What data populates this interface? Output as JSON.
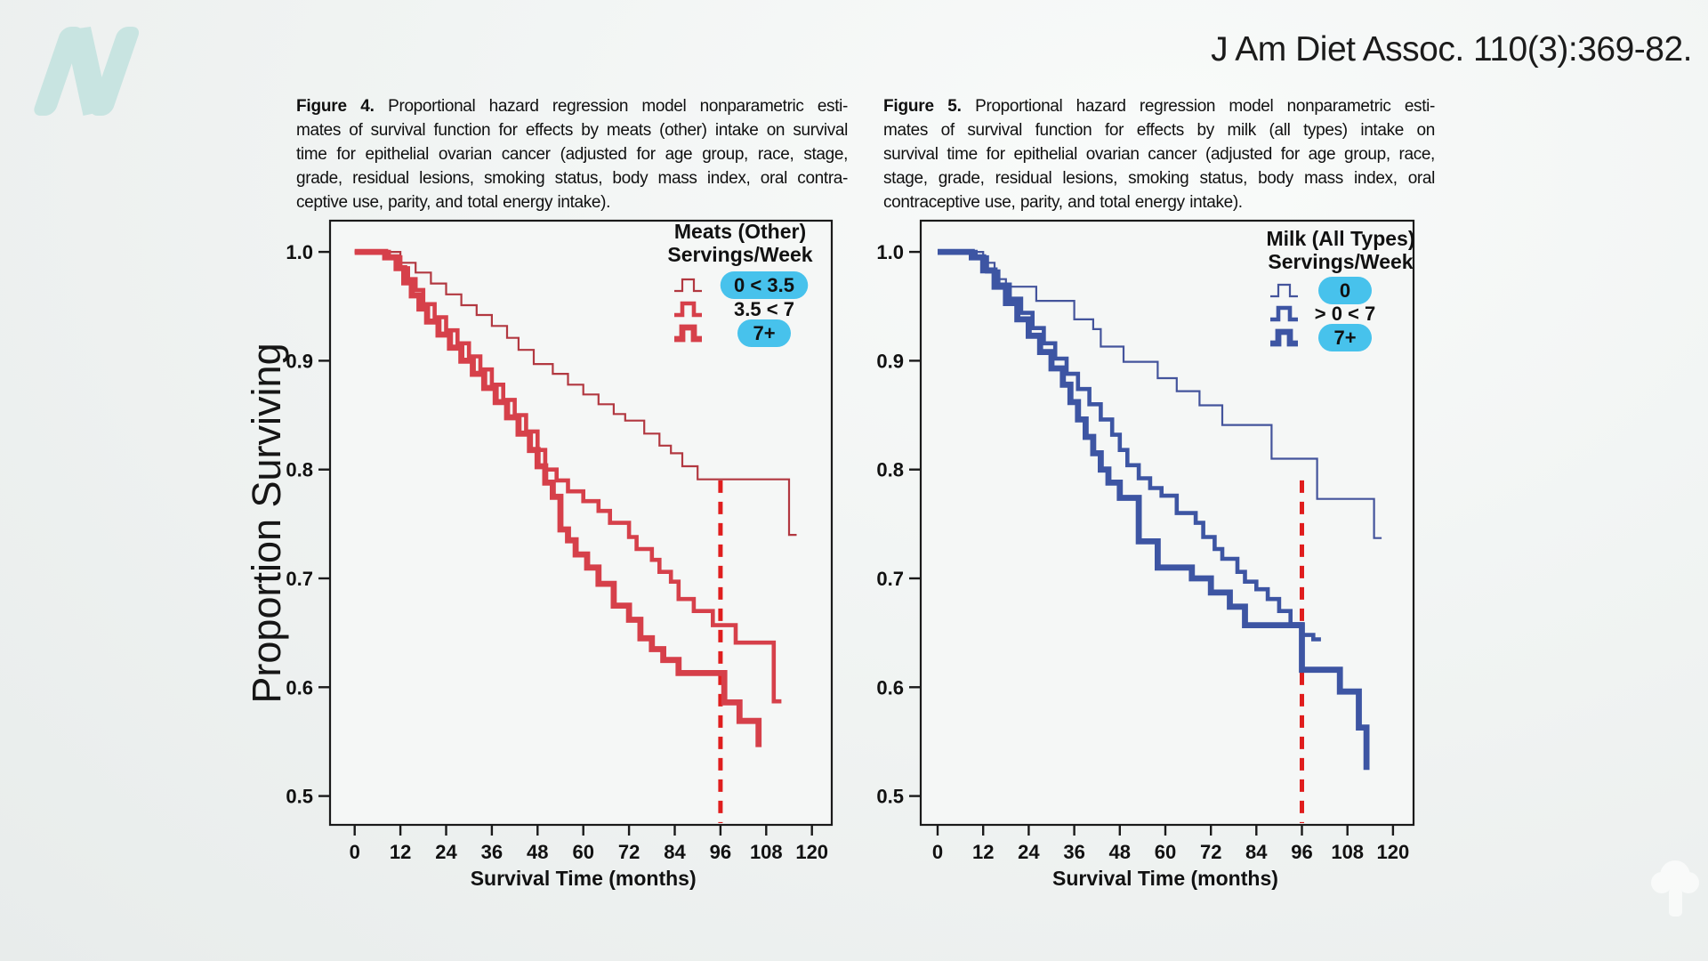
{
  "page": {
    "citation": "J Am Diet Assoc. 110(3):369-82.",
    "logo_letter": "N"
  },
  "shared": {
    "y_label": "Proportion Surviving",
    "x_label": "Survival Time (months)",
    "reference_line_month": 96
  },
  "colors": {
    "red_thin": "#b23840",
    "red": "#d6404a",
    "blue_thin": "#44549c",
    "blue": "#3d55a3",
    "reference_dash": "#e01d1d",
    "legend_pill": "#47c2ec",
    "axis": "#1a1a1a",
    "plot_fill": "#f5f7f6",
    "logo": "#c8e4e1"
  },
  "figures": [
    {
      "id": "fig4",
      "caption": {
        "bold": "Figure 4.",
        "lines": [
          "Proportional hazard regression model nonparametric esti-",
          "mates of survival function for effects by meats (other) intake on survival",
          "time for epithelial ovarian cancer (adjusted for age group, race, stage,",
          "grade, residual lesions, smoking status, body mass index, oral contra-",
          "ceptive use, parity, and total energy intake)."
        ]
      },
      "legend": {
        "title_lines": [
          "Meats (Other)",
          "Servings/Week"
        ],
        "entries": [
          {
            "label": "0 < 3.5",
            "pill": true,
            "weight": "thin"
          },
          {
            "label": "3.5 < 7",
            "pill": false,
            "weight": "medium"
          },
          {
            "label": "7+",
            "pill": true,
            "weight": "thick"
          }
        ]
      }
    },
    {
      "id": "fig5",
      "caption": {
        "bold": "Figure 5.",
        "lines": [
          "Proportional hazard regression model nonparametric esti-",
          "mates of survival function for effects by milk (all types) intake on",
          "survival time for epithelial ovarian cancer (adjusted for age group, race,",
          "stage, grade, residual lesions, smoking status, body mass index, oral",
          "contraceptive use, parity, and total energy intake)."
        ]
      },
      "legend": {
        "title_lines": [
          "Milk (All Types)",
          "Servings/Week"
        ],
        "entries": [
          {
            "label": "0",
            "pill": true,
            "weight": "thin"
          },
          {
            "label": "> 0 < 7",
            "pill": false,
            "weight": "medium"
          },
          {
            "label": "7+",
            "pill": true,
            "weight": "thick"
          }
        ]
      }
    }
  ],
  "chart_data": [
    {
      "type": "line",
      "subtype": "step-survival",
      "title": "Meats (Other) Servings/Week",
      "xlabel": "Survival Time (months)",
      "ylabel": "Proportion Surviving",
      "x_ticks": [
        0,
        12,
        24,
        36,
        48,
        60,
        72,
        84,
        96,
        108,
        120
      ],
      "y_ticks": [
        1.0,
        0.9,
        0.8,
        0.7,
        0.6,
        0.5
      ],
      "xlim": [
        -6,
        125
      ],
      "ylim": [
        0.473,
        1.029
      ],
      "grid": false,
      "legend_position": "top-right",
      "reference_line": {
        "x": 96,
        "style": "dashed",
        "color": "#e01d1d",
        "y_top": 0.79,
        "y_bottom": 0.475
      },
      "series": [
        {
          "name": "0 < 3.5",
          "weight": "thin",
          "color": "#b23840",
          "end_month": 116,
          "steps": [
            [
              0,
              1.0
            ],
            [
              12,
              0.99
            ],
            [
              16,
              0.981
            ],
            [
              20,
              0.971
            ],
            [
              24,
              0.961
            ],
            [
              28,
              0.951
            ],
            [
              32,
              0.942
            ],
            [
              36,
              0.932
            ],
            [
              40,
              0.921
            ],
            [
              43,
              0.91
            ],
            [
              47,
              0.897
            ],
            [
              52,
              0.888
            ],
            [
              56,
              0.878
            ],
            [
              60,
              0.869
            ],
            [
              64,
              0.86
            ],
            [
              68,
              0.851
            ],
            [
              71,
              0.845
            ],
            [
              76,
              0.833
            ],
            [
              80,
              0.822
            ],
            [
              83,
              0.815
            ],
            [
              86,
              0.803
            ],
            [
              90,
              0.791
            ],
            [
              114,
              0.74
            ]
          ]
        },
        {
          "name": "3.5 < 7",
          "weight": "medium",
          "color": "#d6404a",
          "end_month": 112,
          "steps": [
            [
              0,
              1.0
            ],
            [
              9,
              0.995
            ],
            [
              12,
              0.985
            ],
            [
              14,
              0.975
            ],
            [
              16,
              0.965
            ],
            [
              18,
              0.952
            ],
            [
              21,
              0.94
            ],
            [
              24,
              0.928
            ],
            [
              27,
              0.916
            ],
            [
              30,
              0.904
            ],
            [
              33,
              0.892
            ],
            [
              36,
              0.878
            ],
            [
              39,
              0.864
            ],
            [
              42,
              0.85
            ],
            [
              45,
              0.835
            ],
            [
              48,
              0.818
            ],
            [
              50,
              0.8
            ],
            [
              53,
              0.79
            ],
            [
              56,
              0.78
            ],
            [
              60,
              0.771
            ],
            [
              64,
              0.762
            ],
            [
              67,
              0.751
            ],
            [
              72,
              0.738
            ],
            [
              74,
              0.727
            ],
            [
              78,
              0.717
            ],
            [
              80,
              0.706
            ],
            [
              83,
              0.697
            ],
            [
              85,
              0.681
            ],
            [
              89,
              0.67
            ],
            [
              94,
              0.657
            ],
            [
              100,
              0.641
            ],
            [
              110,
              0.587
            ]
          ]
        },
        {
          "name": "7+",
          "weight": "thick",
          "color": "#d6404a",
          "end_month": 106,
          "steps": [
            [
              0,
              1.0
            ],
            [
              8,
              0.995
            ],
            [
              11,
              0.985
            ],
            [
              13,
              0.972
            ],
            [
              15,
              0.96
            ],
            [
              17,
              0.948
            ],
            [
              19,
              0.936
            ],
            [
              22,
              0.924
            ],
            [
              25,
              0.912
            ],
            [
              28,
              0.9
            ],
            [
              31,
              0.888
            ],
            [
              34,
              0.875
            ],
            [
              37,
              0.862
            ],
            [
              40,
              0.848
            ],
            [
              43,
              0.833
            ],
            [
              46,
              0.818
            ],
            [
              48,
              0.803
            ],
            [
              50,
              0.788
            ],
            [
              52,
              0.775
            ],
            [
              54,
              0.745
            ],
            [
              56,
              0.735
            ],
            [
              58,
              0.722
            ],
            [
              61,
              0.71
            ],
            [
              64,
              0.695
            ],
            [
              68,
              0.675
            ],
            [
              72,
              0.662
            ],
            [
              75,
              0.645
            ],
            [
              78,
              0.635
            ],
            [
              81,
              0.625
            ],
            [
              85,
              0.613
            ],
            [
              97,
              0.586
            ],
            [
              101,
              0.569
            ],
            [
              106,
              0.545
            ]
          ]
        }
      ]
    },
    {
      "type": "line",
      "subtype": "step-survival",
      "title": "Milk (All Types) Servings/Week",
      "xlabel": "Survival Time (months)",
      "ylabel": "Proportion Surviving",
      "x_ticks": [
        0,
        12,
        24,
        36,
        48,
        60,
        72,
        84,
        96,
        108,
        120
      ],
      "y_ticks": [
        1.0,
        0.9,
        0.8,
        0.7,
        0.6,
        0.5
      ],
      "xlim": [
        -6,
        125
      ],
      "ylim": [
        0.473,
        1.029
      ],
      "grid": false,
      "legend_position": "top-right",
      "reference_line": {
        "x": 96,
        "style": "dashed",
        "color": "#e01d1d",
        "y_top": 0.79,
        "y_bottom": 0.475
      },
      "series": [
        {
          "name": "0",
          "weight": "thin",
          "color": "#44549c",
          "end_month": 117,
          "steps": [
            [
              0,
              1.0
            ],
            [
              12,
              0.99
            ],
            [
              15,
              0.975
            ],
            [
              18,
              0.968
            ],
            [
              26,
              0.955
            ],
            [
              36,
              0.938
            ],
            [
              41,
              0.929
            ],
            [
              43,
              0.913
            ],
            [
              49,
              0.899
            ],
            [
              58,
              0.884
            ],
            [
              63,
              0.872
            ],
            [
              69,
              0.859
            ],
            [
              75,
              0.841
            ],
            [
              88,
              0.81
            ],
            [
              100,
              0.773
            ],
            [
              115,
              0.737
            ]
          ]
        },
        {
          "name": "> 0 < 7",
          "weight": "medium",
          "color": "#3d55a3",
          "end_month": 101,
          "steps": [
            [
              0,
              1.0
            ],
            [
              10,
              0.995
            ],
            [
              13,
              0.982
            ],
            [
              16,
              0.97
            ],
            [
              19,
              0.957
            ],
            [
              22,
              0.944
            ],
            [
              25,
              0.93
            ],
            [
              28,
              0.916
            ],
            [
              31,
              0.902
            ],
            [
              34,
              0.888
            ],
            [
              37,
              0.874
            ],
            [
              40,
              0.86
            ],
            [
              43,
              0.846
            ],
            [
              46,
              0.832
            ],
            [
              48,
              0.818
            ],
            [
              50,
              0.804
            ],
            [
              53,
              0.792
            ],
            [
              56,
              0.783
            ],
            [
              59,
              0.776
            ],
            [
              63,
              0.76
            ],
            [
              68,
              0.751
            ],
            [
              70,
              0.738
            ],
            [
              73,
              0.727
            ],
            [
              75,
              0.718
            ],
            [
              79,
              0.706
            ],
            [
              81,
              0.697
            ],
            [
              84,
              0.69
            ],
            [
              87,
              0.681
            ],
            [
              90,
              0.67
            ],
            [
              93,
              0.658
            ],
            [
              96,
              0.648
            ],
            [
              99,
              0.644
            ]
          ]
        },
        {
          "name": "7+",
          "weight": "thick",
          "color": "#3d55a3",
          "end_month": 113,
          "steps": [
            [
              0,
              1.0
            ],
            [
              9,
              0.995
            ],
            [
              12,
              0.983
            ],
            [
              15,
              0.968
            ],
            [
              18,
              0.953
            ],
            [
              21,
              0.938
            ],
            [
              24,
              0.923
            ],
            [
              27,
              0.908
            ],
            [
              30,
              0.893
            ],
            [
              33,
              0.878
            ],
            [
              35,
              0.862
            ],
            [
              37,
              0.846
            ],
            [
              39,
              0.83
            ],
            [
              41,
              0.815
            ],
            [
              43,
              0.8
            ],
            [
              45,
              0.788
            ],
            [
              48,
              0.774
            ],
            [
              53,
              0.734
            ],
            [
              58,
              0.71
            ],
            [
              67,
              0.7
            ],
            [
              72,
              0.687
            ],
            [
              77,
              0.674
            ],
            [
              81,
              0.657
            ],
            [
              96,
              0.616
            ],
            [
              106,
              0.596
            ],
            [
              111,
              0.563
            ],
            [
              113,
              0.524
            ]
          ]
        }
      ]
    }
  ]
}
